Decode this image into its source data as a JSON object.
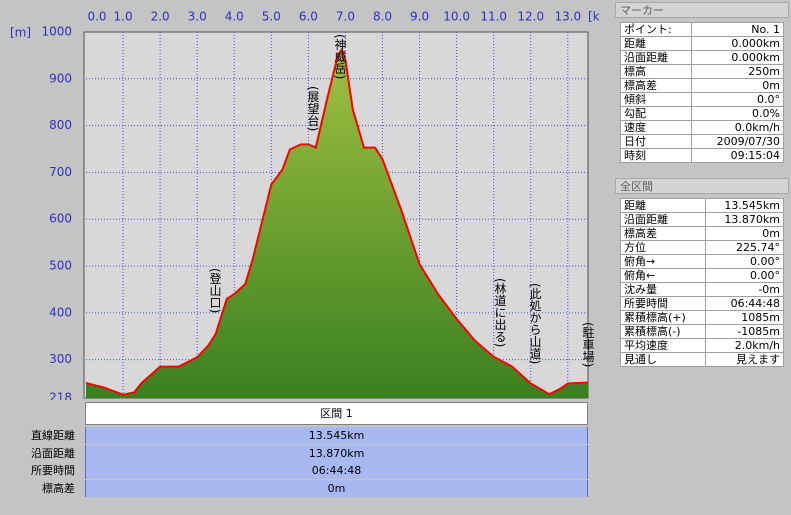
{
  "chart_data": {
    "type": "area",
    "x_label": "[km]",
    "y_label": "[m]",
    "x": [
      0,
      0.5,
      1.0,
      1.3,
      1.5,
      2.0,
      2.5,
      3.0,
      3.3,
      3.5,
      3.8,
      4.0,
      4.3,
      4.5,
      5.0,
      5.3,
      5.5,
      5.8,
      6.0,
      6.2,
      6.5,
      6.8,
      6.9,
      7.0,
      7.2,
      7.5,
      7.8,
      8.0,
      8.5,
      9.0,
      9.5,
      10.0,
      10.5,
      11.0,
      11.5,
      12.0,
      12.5,
      12.8,
      13.0,
      13.545
    ],
    "values": [
      250,
      240,
      225,
      230,
      250,
      285,
      285,
      305,
      330,
      355,
      430,
      440,
      462,
      515,
      674,
      706,
      749,
      760,
      760,
      753,
      855,
      951,
      962,
      940,
      834,
      753,
      753,
      728,
      621,
      504,
      440,
      387,
      340,
      306,
      285,
      249,
      226,
      238,
      249,
      251
    ],
    "line_color": "#ff0000",
    "fill_top": "#a0c040",
    "fill_bottom": "#3a8020",
    "xlim": [
      0,
      13.545
    ],
    "ylim": [
      218,
      1000
    ],
    "xticks": [
      {
        "value": 0,
        "label": "0.0"
      },
      {
        "value": 1,
        "label": "1.0"
      },
      {
        "value": 2,
        "label": "2.0"
      },
      {
        "value": 3,
        "label": "3.0"
      },
      {
        "value": 4,
        "label": "4.0"
      },
      {
        "value": 5,
        "label": "5.0"
      },
      {
        "value": 6,
        "label": "6.0"
      },
      {
        "value": 7,
        "label": "7.0"
      },
      {
        "value": 8,
        "label": "8.0"
      },
      {
        "value": 9,
        "label": "9.0"
      },
      {
        "value": 10,
        "label": "10.0"
      },
      {
        "value": 11,
        "label": "11.0"
      },
      {
        "value": 12,
        "label": "12.0"
      },
      {
        "value": 13,
        "label": "13.0"
      }
    ],
    "yticks": [
      218,
      300,
      400,
      500,
      600,
      700,
      800,
      900,
      1000
    ],
    "grid": true,
    "annotations": [
      "(登山口)",
      "(展望台)",
      "(神威岳)",
      "(林道に出る)",
      "(此処から山道)",
      "(駐車場)"
    ]
  },
  "section_table": {
    "header": "区間 1",
    "rows": [
      [
        "直線距離",
        "13.545km"
      ],
      [
        "沿面距離",
        "13.870km"
      ],
      [
        "所要時間",
        "06:44:48"
      ],
      [
        "標高差",
        "0m"
      ]
    ]
  },
  "marker_panel": {
    "title": "マーカー",
    "rows": [
      [
        "ポイント:",
        "No. 1"
      ],
      [
        "距離",
        "0.000km"
      ],
      [
        "沿面距離",
        "0.000km"
      ],
      [
        "標高",
        "250m"
      ],
      [
        "標高差",
        "0m"
      ],
      [
        "傾斜",
        "0.0°"
      ],
      [
        "勾配",
        "0.0%"
      ],
      [
        "速度",
        "0.0km/h"
      ],
      [
        "日付",
        "2009/07/30"
      ],
      [
        "時刻",
        "09:15:04"
      ]
    ]
  },
  "total_panel": {
    "title": "全区間",
    "rows": [
      [
        "距離",
        "13.545km"
      ],
      [
        "沿面距離",
        "13.870km"
      ],
      [
        "標高差",
        "0m"
      ],
      [
        "方位",
        "225.74°"
      ],
      [
        "俯角→",
        "0.00°"
      ],
      [
        "俯角←",
        "0.00°"
      ],
      [
        "沈み量",
        "-0m"
      ],
      [
        "所要時間",
        "06:44:48"
      ],
      [
        "累積標高(+)",
        "1085m"
      ],
      [
        "累積標高(-)",
        "-1085m"
      ],
      [
        "平均速度",
        "2.0km/h"
      ],
      [
        "見通し",
        "見えます"
      ]
    ]
  }
}
